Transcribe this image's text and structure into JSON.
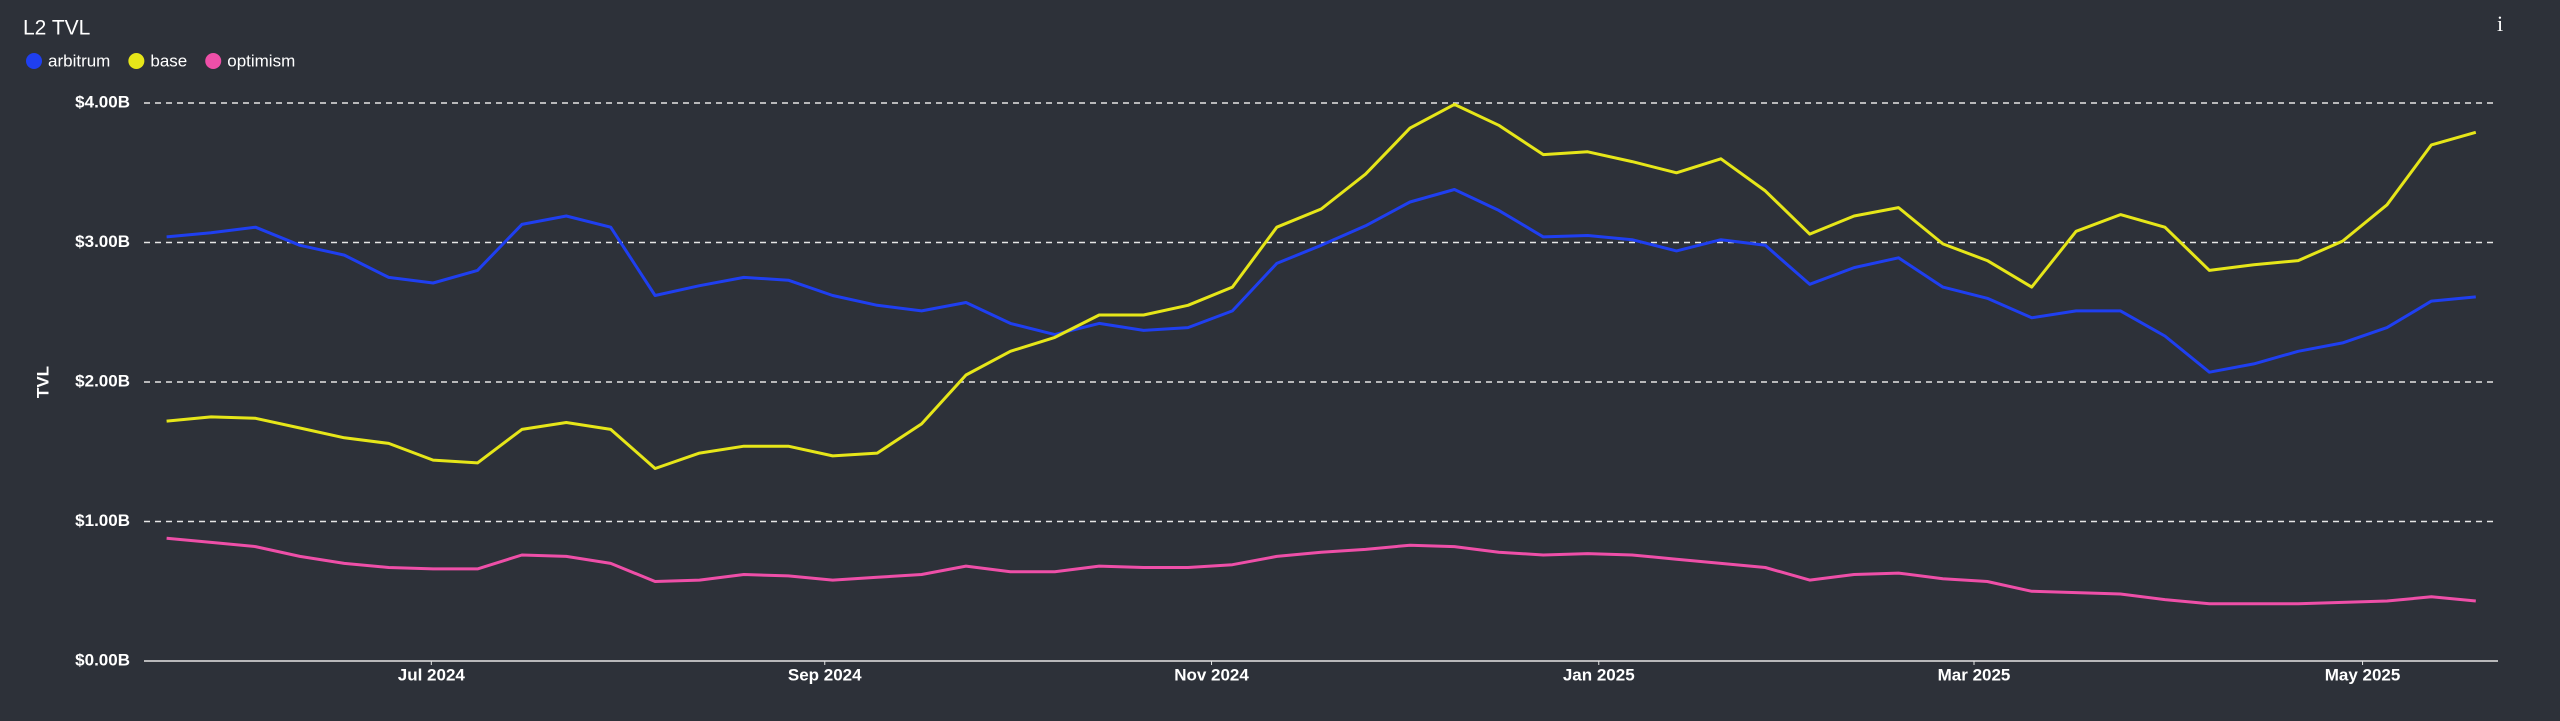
{
  "chart_data": {
    "type": "line",
    "title": "L2 TVL",
    "info_icon": "i",
    "y_label": "TVL",
    "legend": "top-left",
    "grid": true,
    "xlim": [
      -0.51,
      52.5
    ],
    "xticks": [
      {
        "value": 5.96,
        "label": "Jul 2024"
      },
      {
        "value": 14.82,
        "label": "Sep 2024"
      },
      {
        "value": 23.53,
        "label": "Nov 2024"
      },
      {
        "value": 32.25,
        "label": "Jan 2025"
      },
      {
        "value": 40.7,
        "label": "Mar 2025"
      },
      {
        "value": 49.45,
        "label": "May 2025"
      }
    ],
    "ylim": [
      0,
      4
    ],
    "yticks": [
      {
        "value": 0,
        "label": "$0.00B"
      },
      {
        "value": 1,
        "label": "$1.00B"
      },
      {
        "value": 2,
        "label": "$2.00B"
      },
      {
        "value": 3,
        "label": "$3.00B"
      },
      {
        "value": 4,
        "label": "$4.00B"
      }
    ],
    "series": [
      {
        "name": "arbitrum",
        "color": "#1f3ff0",
        "values": [
          3.04,
          3.07,
          3.11,
          2.98,
          2.91,
          2.75,
          2.71,
          2.8,
          3.13,
          3.19,
          3.11,
          2.62,
          2.69,
          2.75,
          2.73,
          2.62,
          2.55,
          2.51,
          2.57,
          2.42,
          2.34,
          2.42,
          2.37,
          2.39,
          2.51,
          2.85,
          2.98,
          3.12,
          3.29,
          3.38,
          3.23,
          3.04,
          3.05,
          3.02,
          2.94,
          3.02,
          2.98,
          2.7,
          2.82,
          2.89,
          2.68,
          2.6,
          2.46,
          2.51,
          2.51,
          2.33,
          2.07,
          2.13,
          2.22,
          2.28,
          2.39,
          2.58,
          2.61
        ]
      },
      {
        "name": "base",
        "color": "#e6e619",
        "values": [
          1.72,
          1.75,
          1.74,
          1.67,
          1.6,
          1.56,
          1.44,
          1.42,
          1.66,
          1.71,
          1.66,
          1.38,
          1.49,
          1.54,
          1.54,
          1.47,
          1.49,
          1.7,
          2.05,
          2.22,
          2.32,
          2.48,
          2.48,
          2.55,
          2.68,
          3.11,
          3.24,
          3.49,
          3.82,
          3.99,
          3.84,
          3.63,
          3.65,
          3.58,
          3.5,
          3.6,
          3.37,
          3.06,
          3.19,
          3.25,
          2.99,
          2.87,
          2.68,
          3.08,
          3.2,
          3.11,
          2.8,
          2.84,
          2.87,
          3.01,
          3.27,
          3.7,
          3.79
        ]
      },
      {
        "name": "optimism",
        "color": "#ee4fa8",
        "values": [
          0.88,
          0.85,
          0.82,
          0.75,
          0.7,
          0.67,
          0.66,
          0.66,
          0.76,
          0.75,
          0.7,
          0.57,
          0.58,
          0.62,
          0.61,
          0.58,
          0.6,
          0.62,
          0.68,
          0.64,
          0.64,
          0.68,
          0.67,
          0.67,
          0.69,
          0.75,
          0.78,
          0.8,
          0.83,
          0.82,
          0.78,
          0.76,
          0.77,
          0.76,
          0.73,
          0.7,
          0.67,
          0.58,
          0.62,
          0.63,
          0.59,
          0.57,
          0.5,
          0.49,
          0.48,
          0.44,
          0.41,
          0.41,
          0.41,
          0.42,
          0.43,
          0.46,
          0.43
        ]
      }
    ]
  }
}
